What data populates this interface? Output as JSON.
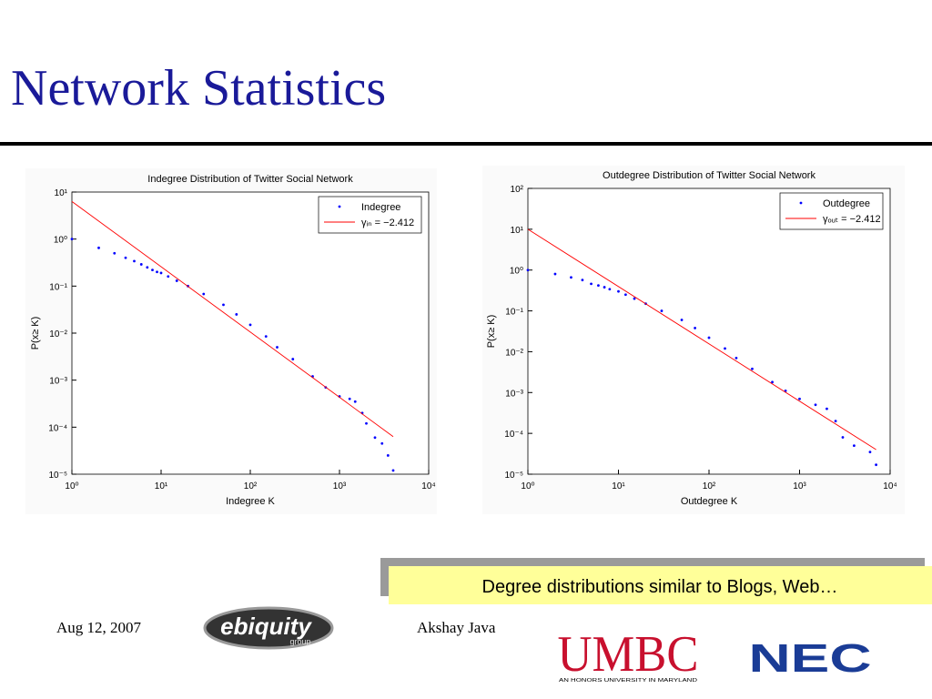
{
  "slide": {
    "title": "Network Statistics",
    "callout": "Degree distributions similar to Blogs, Web…"
  },
  "chart_data": [
    {
      "type": "scatter",
      "title": "Indegree Distribution of Twitter Social Network",
      "x_label": "Indegree K",
      "y_label": "P(x≥ K)",
      "log_x": true,
      "log_y": true,
      "legend": "upper right",
      "xlim": [
        1,
        10000
      ],
      "ylim": [
        1e-05,
        10
      ],
      "xticks": [
        {
          "value": 1,
          "label": "10⁰"
        },
        {
          "value": 10,
          "label": "10¹"
        },
        {
          "value": 100,
          "label": "10²"
        },
        {
          "value": 1000,
          "label": "10³"
        },
        {
          "value": 10000,
          "label": "10⁴"
        }
      ],
      "yticks": [
        {
          "value": 1e-05,
          "label": "10⁻⁵"
        },
        {
          "value": 0.0001,
          "label": "10⁻⁴"
        },
        {
          "value": 0.001,
          "label": "10⁻³"
        },
        {
          "value": 0.01,
          "label": "10⁻²"
        },
        {
          "value": 0.1,
          "label": "10⁻¹"
        },
        {
          "value": 1,
          "label": "10⁰"
        },
        {
          "value": 10,
          "label": "10¹"
        }
      ],
      "series": [
        {
          "name": "Indegree",
          "color": "#0000ff",
          "style": "dots",
          "x": [
            1,
            2,
            3,
            4,
            5,
            6,
            7,
            8,
            9,
            10,
            12,
            15,
            20,
            30,
            50,
            70,
            100,
            150,
            200,
            300,
            500,
            700,
            1000,
            1300,
            1500,
            1800,
            2000,
            2500,
            3000,
            3500,
            4000
          ],
          "values": [
            1,
            0.65,
            0.5,
            0.4,
            0.34,
            0.29,
            0.25,
            0.22,
            0.2,
            0.19,
            0.16,
            0.13,
            0.1,
            0.068,
            0.04,
            0.025,
            0.015,
            0.0085,
            0.005,
            0.0028,
            0.0012,
            0.0007,
            0.00045,
            0.0004,
            0.00035,
            0.0002,
            0.00012,
            6e-05,
            4.5e-05,
            2.5e-05,
            1.2e-05
          ]
        },
        {
          "name": "γᵢₙ = −2.412",
          "color": "#ff0000",
          "style": "line",
          "x": [
            1,
            4000
          ],
          "values": [
            6.3,
            6.3e-05
          ]
        }
      ]
    },
    {
      "type": "scatter",
      "title": "Outdegree Distribution of Twitter Social Network",
      "x_label": "Outdegree K",
      "y_label": "P(x≥ K)",
      "log_x": true,
      "log_y": true,
      "legend": "upper right",
      "xlim": [
        1,
        10000
      ],
      "ylim": [
        1e-05,
        100
      ],
      "xticks": [
        {
          "value": 1,
          "label": "10⁰"
        },
        {
          "value": 10,
          "label": "10¹"
        },
        {
          "value": 100,
          "label": "10²"
        },
        {
          "value": 1000,
          "label": "10³"
        },
        {
          "value": 10000,
          "label": "10⁴"
        }
      ],
      "yticks": [
        {
          "value": 1e-05,
          "label": "10⁻⁵"
        },
        {
          "value": 0.0001,
          "label": "10⁻⁴"
        },
        {
          "value": 0.001,
          "label": "10⁻³"
        },
        {
          "value": 0.01,
          "label": "10⁻²"
        },
        {
          "value": 0.1,
          "label": "10⁻¹"
        },
        {
          "value": 1,
          "label": "10⁰"
        },
        {
          "value": 10,
          "label": "10¹"
        },
        {
          "value": 100,
          "label": "10²"
        }
      ],
      "series": [
        {
          "name": "Outdegree",
          "color": "#0000ff",
          "style": "dots",
          "x": [
            1,
            2,
            3,
            4,
            5,
            6,
            7,
            8,
            10,
            12,
            15,
            20,
            30,
            50,
            70,
            100,
            150,
            200,
            300,
            500,
            700,
            1000,
            1500,
            2000,
            2500,
            3000,
            4000,
            6000,
            7000
          ],
          "values": [
            1,
            0.8,
            0.66,
            0.57,
            0.46,
            0.42,
            0.38,
            0.34,
            0.3,
            0.25,
            0.2,
            0.15,
            0.1,
            0.06,
            0.038,
            0.022,
            0.012,
            0.007,
            0.0038,
            0.0018,
            0.0011,
            0.0007,
            0.0005,
            0.0004,
            0.0002,
            8e-05,
            5e-05,
            3.5e-05,
            1.7e-05
          ]
        },
        {
          "name": "γₒᵤₜ = −2.412",
          "color": "#ff0000",
          "style": "line",
          "x": [
            1,
            7000
          ],
          "values": [
            10,
            4e-05
          ]
        }
      ]
    }
  ],
  "footer": {
    "date": "Aug 12, 2007",
    "author": "Akshay Java",
    "logos": {
      "ebiquity": "ebiquity",
      "ebiquity_sub": "group",
      "umbc": "UMBC",
      "umbc_sub": "AN HONORS UNIVERSITY IN MARYLAND",
      "nec": "NEC"
    }
  }
}
